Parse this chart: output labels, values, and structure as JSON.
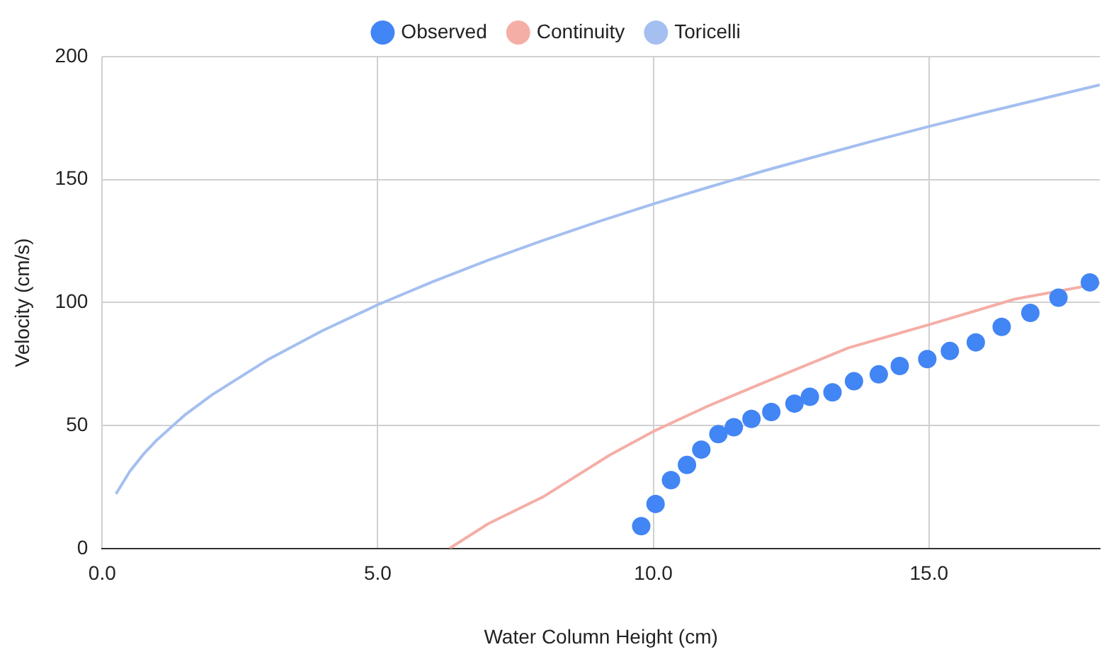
{
  "chart_data": {
    "type": "scatter",
    "xlabel": "Water Column Height (cm)",
    "ylabel": "Velocity (cm/s)",
    "xlim": [
      0,
      18.1
    ],
    "xticks": [
      {
        "value": 0,
        "label": "0.0"
      },
      {
        "value": 5,
        "label": "5.0"
      },
      {
        "value": 10,
        "label": "10.0"
      },
      {
        "value": 15,
        "label": "15.0"
      }
    ],
    "ylim": [
      0,
      200
    ],
    "yticks": [
      0,
      50,
      100,
      150,
      200
    ],
    "grid": true,
    "legend": "top",
    "series": [
      {
        "name": "Observed",
        "type": "scatter",
        "marker": "circle",
        "color": "#4285f4",
        "x": [
          9.78,
          10.04,
          10.32,
          10.61,
          10.87,
          11.18,
          11.46,
          11.78,
          12.14,
          12.56,
          12.84,
          13.25,
          13.64,
          14.09,
          14.47,
          14.97,
          15.38,
          15.85,
          16.32,
          16.84,
          17.35,
          17.92
        ],
        "values": [
          9.1,
          18.1,
          27.8,
          34,
          40.2,
          46.5,
          49.3,
          52.7,
          55.5,
          58.9,
          61.7,
          63.5,
          68,
          70.8,
          74.2,
          77,
          80.3,
          83.8,
          90.1,
          95.8,
          102,
          108.2
        ]
      },
      {
        "name": "Continuity",
        "type": "line",
        "marker": "none",
        "color": "#f4aea6",
        "x": [
          6.3,
          7,
          8,
          9.21,
          10,
          11,
          12,
          13.54,
          14.97,
          16.56,
          17.92,
          18.1
        ],
        "values": [
          0,
          10,
          21,
          38,
          47.6,
          58,
          67.4,
          81.6,
          90.8,
          101.4,
          107,
          108
        ]
      },
      {
        "name": "Toricelli",
        "type": "line",
        "marker": "none",
        "color": "#a4bff0",
        "x": [
          0.25,
          0.5,
          0.75,
          1,
          1.5,
          2,
          3,
          4,
          5,
          6,
          7,
          8,
          9,
          10,
          11,
          12,
          13,
          14,
          15,
          16,
          17,
          18.1
        ],
        "values": [
          22.2,
          31.3,
          38.4,
          44.3,
          54.3,
          62.6,
          76.7,
          88.6,
          99.1,
          108.5,
          117.2,
          125.3,
          132.9,
          140.1,
          146.9,
          153.5,
          159.7,
          165.8,
          171.6,
          177.2,
          182.6,
          188.5
        ]
      }
    ]
  }
}
